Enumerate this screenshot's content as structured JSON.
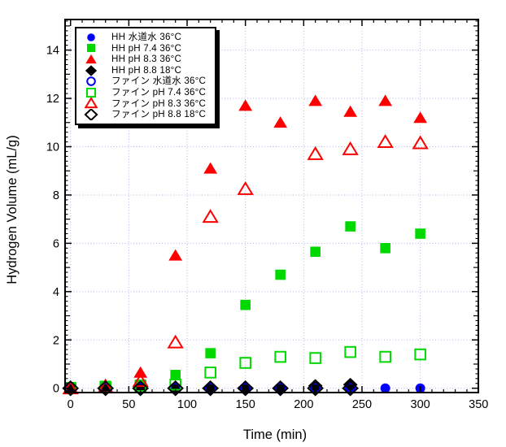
{
  "chart_data": {
    "type": "scatter",
    "title": "",
    "xlabel": "Time (min)",
    "ylabel": "Hydrogen Volume (mL/g)",
    "xlim": [
      -5,
      350
    ],
    "ylim": [
      -0.2,
      15.3
    ],
    "x_major_ticks": [
      0,
      50,
      100,
      150,
      200,
      250,
      300,
      350
    ],
    "x_minor_step": 10,
    "y_major_ticks": [
      0,
      2,
      4,
      6,
      8,
      10,
      12,
      14
    ],
    "y_medium_step": 1,
    "y_minor_step": 0.2,
    "grid": "dotted lines at major ticks, both axes",
    "grid_color": "#b3b3e8",
    "frame_color": "#000000",
    "background_color": "#ffffff",
    "legend_position": "top-left-inside",
    "series": [
      {
        "name": "HH 水道水 36°C",
        "marker": "circle",
        "fill": "solid",
        "color": "#0000ff",
        "points": [
          [
            0,
            0
          ],
          [
            30,
            0
          ],
          [
            60,
            0
          ],
          [
            90,
            0
          ],
          [
            120,
            0
          ],
          [
            150,
            0
          ],
          [
            180,
            0
          ],
          [
            210,
            0
          ],
          [
            240,
            0
          ],
          [
            270,
            0
          ],
          [
            300,
            0
          ]
        ]
      },
      {
        "name": "HH pH 7.4 36°C",
        "marker": "square",
        "fill": "solid",
        "color": "#00d900",
        "points": [
          [
            0,
            0.05
          ],
          [
            30,
            0.1
          ],
          [
            60,
            0.15
          ],
          [
            90,
            0.55
          ],
          [
            120,
            1.45
          ],
          [
            150,
            3.45
          ],
          [
            180,
            4.7
          ],
          [
            210,
            5.65
          ],
          [
            240,
            6.7
          ],
          [
            270,
            5.8
          ],
          [
            300,
            6.4
          ]
        ]
      },
      {
        "name": "HH pH 8.3 36°C",
        "marker": "triangle",
        "fill": "solid",
        "color": "#ff0000",
        "points": [
          [
            0,
            0.05
          ],
          [
            30,
            0.15
          ],
          [
            60,
            0.65
          ],
          [
            90,
            5.5
          ],
          [
            120,
            9.1
          ],
          [
            150,
            11.7
          ],
          [
            180,
            11.0
          ],
          [
            210,
            11.9
          ],
          [
            240,
            11.45
          ],
          [
            270,
            11.9
          ],
          [
            300,
            11.2
          ]
        ]
      },
      {
        "name": "HH pH 8.8 18°C",
        "marker": "diamond",
        "fill": "solid",
        "color": "#000000",
        "points": [
          [
            0,
            0
          ],
          [
            30,
            0
          ],
          [
            60,
            0
          ],
          [
            90,
            0
          ],
          [
            120,
            0
          ],
          [
            150,
            0
          ],
          [
            180,
            0
          ],
          [
            210,
            0.1
          ],
          [
            240,
            0.15
          ]
        ]
      },
      {
        "name": "ファイン 水道水 36°C",
        "marker": "circle",
        "fill": "open",
        "color": "#0000ff",
        "points": [
          [
            0,
            0
          ],
          [
            30,
            0
          ],
          [
            60,
            0
          ],
          [
            90,
            0
          ],
          [
            120,
            0
          ],
          [
            150,
            0
          ],
          [
            180,
            0
          ],
          [
            210,
            0
          ],
          [
            240,
            0
          ]
        ]
      },
      {
        "name": "ファイン pH 7.4 36°C",
        "marker": "square",
        "fill": "open",
        "color": "#00d900",
        "points": [
          [
            0,
            0
          ],
          [
            30,
            0.05
          ],
          [
            60,
            0.1
          ],
          [
            90,
            0.15
          ],
          [
            120,
            0.65
          ],
          [
            150,
            1.05
          ],
          [
            180,
            1.3
          ],
          [
            210,
            1.25
          ],
          [
            240,
            1.5
          ],
          [
            270,
            1.3
          ],
          [
            300,
            1.4
          ]
        ]
      },
      {
        "name": "ファイン pH 8.3 36°C",
        "marker": "triangle",
        "fill": "open",
        "color": "#ff0000",
        "points": [
          [
            0,
            0
          ],
          [
            30,
            0.05
          ],
          [
            60,
            0.3
          ],
          [
            90,
            1.9
          ],
          [
            120,
            7.1
          ],
          [
            150,
            8.25
          ],
          [
            210,
            9.7
          ],
          [
            240,
            9.9
          ],
          [
            270,
            10.2
          ],
          [
            300,
            10.15
          ]
        ]
      },
      {
        "name": "ファイン pH 8.8 18°C",
        "marker": "diamond",
        "fill": "open",
        "color": "#000000",
        "points": [
          [
            0,
            0
          ],
          [
            30,
            0
          ],
          [
            60,
            0
          ],
          [
            90,
            0
          ],
          [
            120,
            0
          ],
          [
            150,
            0
          ],
          [
            180,
            0
          ],
          [
            210,
            0
          ],
          [
            240,
            0
          ]
        ]
      }
    ]
  }
}
